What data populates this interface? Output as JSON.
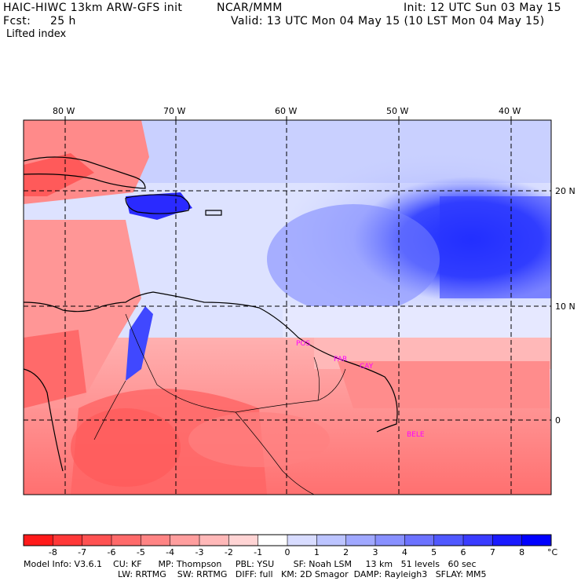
{
  "header": {
    "model": "HAIC-HIWC 13km ARW-GFS init",
    "org": "NCAR/MMM",
    "init": "Init: 12 UTC Sun 03 May 15",
    "fcst_label": "Fcst:",
    "fcst_value": "25 h",
    "valid": "Valid: 13 UTC Mon 04 May 15 (10 LST Mon 04 May 15)",
    "field": "Lifted index"
  },
  "map": {
    "lon_labels": [
      "80 W",
      "70 W",
      "60 W",
      "50 W",
      "40 W"
    ],
    "lat_labels": [
      "20 N",
      "10 N",
      "0"
    ],
    "cities": [
      "POS",
      "PAR",
      "CAY",
      "BELE"
    ]
  },
  "colorbar": {
    "ticks": [
      "-8",
      "-7",
      "-6",
      "-5",
      "-4",
      "-3",
      "-2",
      "-1",
      "0",
      "1",
      "2",
      "3",
      "4",
      "5",
      "6",
      "7",
      "8"
    ],
    "unit": "°C",
    "colors": [
      "#ff1a1a",
      "#ff3838",
      "#ff5252",
      "#ff6a6a",
      "#ff8484",
      "#ff9e9e",
      "#ffb8b8",
      "#ffd4d4",
      "#ffffff",
      "#d8dcff",
      "#bcc4ff",
      "#a0a8ff",
      "#8890ff",
      "#6c72ff",
      "#5058ff",
      "#3a3cff",
      "#1a1aff",
      "#0000ff"
    ]
  },
  "footer": {
    "line1": "Model Info: V3.6.1    CU: KF      MP: Thompson     PBL: YSU       SF: Noah LSM     13 km   51 levels   60 sec",
    "line2": "LW: RRTMG    SW: RRTMG   DIFF: full   KM: 2D Smagor  DAMP: Rayleigh3   SFLAY: MM5"
  }
}
